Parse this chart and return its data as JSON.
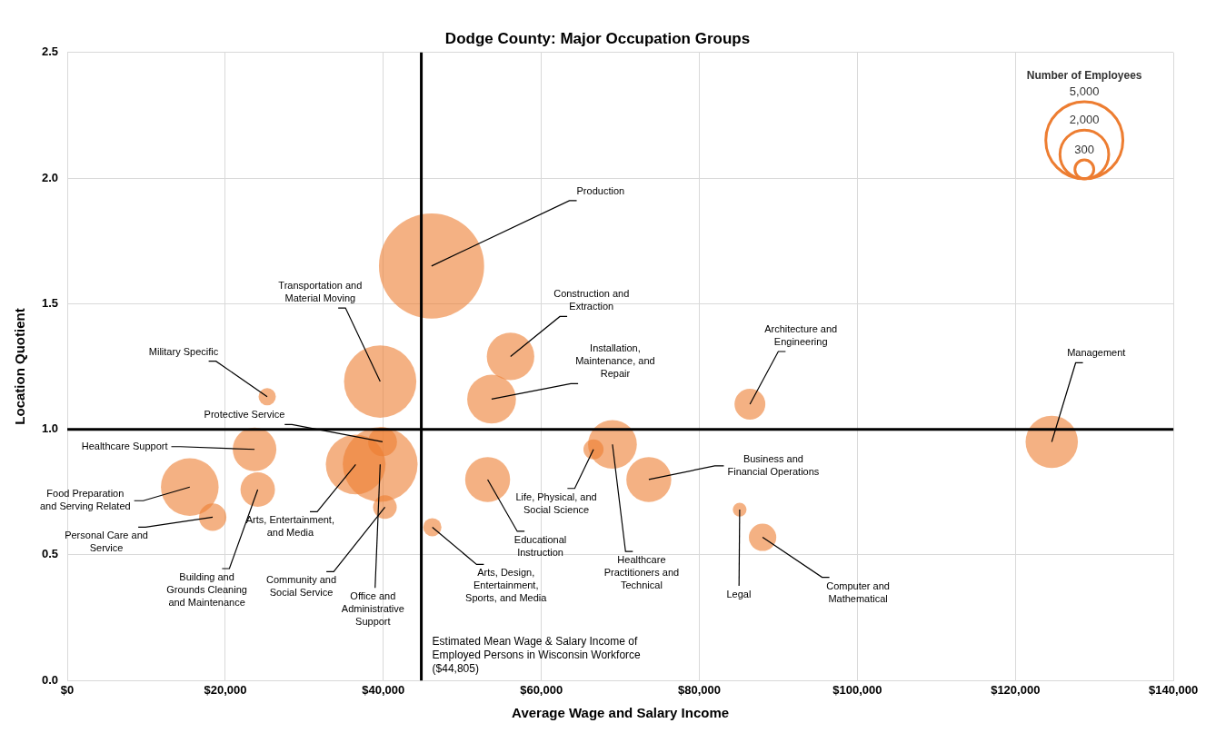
{
  "chart_data": {
    "type": "bubble",
    "title": "Dodge County: Major Occupation Groups",
    "xlabel": "Average Wage and Salary Income",
    "ylabel": "Location Quotient",
    "legend_title": "Number of Employees",
    "size_legend": [
      {
        "value": 300,
        "label": "300"
      },
      {
        "value": 2000,
        "label": "2,000"
      },
      {
        "value": 5000,
        "label": "5,000"
      }
    ],
    "x": [
      46100,
      39600,
      56100,
      53700,
      25300,
      39900,
      23700,
      15500,
      24100,
      18400,
      36500,
      39600,
      40200,
      46200,
      53200,
      66600,
      69000,
      73600,
      86400,
      85100,
      88000,
      124600
    ],
    "values": [
      1.65,
      1.19,
      1.29,
      1.12,
      1.13,
      0.95,
      0.92,
      0.77,
      0.76,
      0.65,
      0.86,
      0.86,
      0.69,
      0.61,
      0.8,
      0.92,
      0.94,
      0.8,
      1.1,
      0.68,
      0.57,
      0.95
    ],
    "sizes": [
      9300,
      4400,
      1900,
      2000,
      250,
      700,
      1600,
      2800,
      1000,
      630,
      3000,
      4700,
      470,
      280,
      1700,
      340,
      2000,
      1700,
      800,
      160,
      630,
      2300
    ],
    "color": "#ed7d31",
    "xlim": [
      0,
      140000
    ],
    "xticks": [
      {
        "value": 0,
        "label": "$0"
      },
      {
        "value": 20000,
        "label": "$20,000"
      },
      {
        "value": 40000,
        "label": "$40,000"
      },
      {
        "value": 60000,
        "label": "$60,000"
      },
      {
        "value": 80000,
        "label": "$80,000"
      },
      {
        "value": 100000,
        "label": "$100,000"
      },
      {
        "value": 120000,
        "label": "$120,000"
      },
      {
        "value": 140000,
        "label": "$140,000"
      }
    ],
    "ylim": [
      0,
      2.5
    ],
    "yticks": [
      {
        "value": 0,
        "label": "0.0"
      },
      {
        "value": 0.5,
        "label": "0.5"
      },
      {
        "value": 1,
        "label": "1.0"
      },
      {
        "value": 1.5,
        "label": "1.5"
      },
      {
        "value": 2,
        "label": "2.0"
      },
      {
        "value": 2.5,
        "label": "2.5"
      }
    ],
    "grid": true,
    "ref_lines": [
      {
        "axis": "x",
        "value": 44805,
        "label": "Estimated Mean Wage & Salary Income of Employed Persons in Wisconsin Workforce ($44,805)",
        "color": "#000000"
      },
      {
        "axis": "y",
        "value": 1,
        "label": null,
        "color": "#000000"
      }
    ],
    "annotations": [
      {
        "text": "Production",
        "x": 46100,
        "y": 1.65
      },
      {
        "text": "Transportation and Material Moving",
        "x": 39600,
        "y": 1.19
      },
      {
        "text": "Construction and Extraction",
        "x": 56100,
        "y": 1.29
      },
      {
        "text": "Installation, Maintenance, and Repair",
        "x": 53700,
        "y": 1.12
      },
      {
        "text": "Military Specific",
        "x": 25300,
        "y": 1.13
      },
      {
        "text": "Protective Service",
        "x": 39900,
        "y": 0.95
      },
      {
        "text": "Healthcare Support",
        "x": 23700,
        "y": 0.92
      },
      {
        "text": "Food Preparation and Serving Related",
        "x": 15500,
        "y": 0.77
      },
      {
        "text": "Building and Grounds Cleaning and Maintenance",
        "x": 24100,
        "y": 0.76
      },
      {
        "text": "Personal Care and Service",
        "x": 18400,
        "y": 0.65
      },
      {
        "text": "Arts, Entertainment, and Media",
        "x": 36500,
        "y": 0.86
      },
      {
        "text": "Office and Administrative Support",
        "x": 39600,
        "y": 0.86
      },
      {
        "text": "Community and Social Service",
        "x": 40200,
        "y": 0.69
      },
      {
        "text": "Arts, Design, Entertainment, Sports, and Media",
        "x": 46200,
        "y": 0.61
      },
      {
        "text": "Educational Instruction",
        "x": 53200,
        "y": 0.8
      },
      {
        "text": "Life, Physical, and Social Science",
        "x": 66600,
        "y": 0.92
      },
      {
        "text": "Healthcare Practitioners and Technical",
        "x": 69000,
        "y": 0.94
      },
      {
        "text": "Business and Financial Operations",
        "x": 73600,
        "y": 0.8
      },
      {
        "text": "Architecture and Engineering",
        "x": 86400,
        "y": 1.1
      },
      {
        "text": "Legal",
        "x": 85100,
        "y": 0.68
      },
      {
        "text": "Computer and Mathematical",
        "x": 88000,
        "y": 0.57
      },
      {
        "text": "Management",
        "x": 124600,
        "y": 0.95
      }
    ]
  }
}
